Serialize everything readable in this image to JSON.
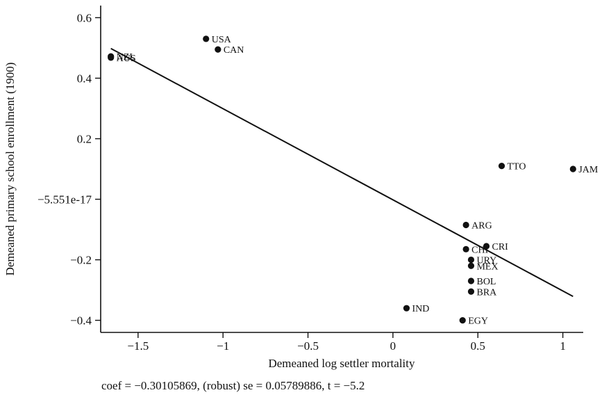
{
  "chart_data": {
    "type": "scatter",
    "title": "",
    "xlabel": "Demeaned log settler mortality",
    "ylabel": "Demeaned primary school enrollment (1900)",
    "xlim": [
      -1.72,
      1.12
    ],
    "ylim": [
      -0.44,
      0.64
    ],
    "x_ticks": [
      {
        "value": -1.5,
        "label": "−1.5"
      },
      {
        "value": -1,
        "label": "−1"
      },
      {
        "value": -0.5,
        "label": "−0.5"
      },
      {
        "value": 0,
        "label": "0"
      },
      {
        "value": 0.5,
        "label": "0.5"
      },
      {
        "value": 1,
        "label": "1"
      }
    ],
    "y_ticks": [
      {
        "value": 0.6,
        "label": "0.6"
      },
      {
        "value": 0.4,
        "label": "0.4"
      },
      {
        "value": 0.2,
        "label": "0.2"
      },
      {
        "value": 0,
        "label": "−5.551e-17"
      },
      {
        "value": -0.2,
        "label": "−0.2"
      },
      {
        "value": -0.4,
        "label": "−0.4"
      }
    ],
    "points": [
      {
        "label": "USA",
        "x": -1.1,
        "y": 0.53
      },
      {
        "label": "CAN",
        "x": -1.03,
        "y": 0.495
      },
      {
        "label": "NZL",
        "x": -1.66,
        "y": 0.472
      },
      {
        "label": "AUS",
        "x": -1.66,
        "y": 0.468
      },
      {
        "label": "TTO",
        "x": 0.64,
        "y": 0.11
      },
      {
        "label": "JAM",
        "x": 1.06,
        "y": 0.1
      },
      {
        "label": "ARG",
        "x": 0.43,
        "y": -0.085
      },
      {
        "label": "CRI",
        "x": 0.55,
        "y": -0.155
      },
      {
        "label": "CHI",
        "x": 0.43,
        "y": -0.165
      },
      {
        "label": "URY",
        "x": 0.46,
        "y": -0.2
      },
      {
        "label": "MEX",
        "x": 0.46,
        "y": -0.22
      },
      {
        "label": "BOL",
        "x": 0.46,
        "y": -0.27
      },
      {
        "label": "BRA",
        "x": 0.46,
        "y": -0.305
      },
      {
        "label": "IND",
        "x": 0.08,
        "y": -0.36
      },
      {
        "label": "EGY",
        "x": 0.41,
        "y": -0.4
      }
    ],
    "fit_line": {
      "x": [
        -1.66,
        1.06
      ],
      "y": [
        0.498,
        -0.321
      ]
    },
    "footnote": "coef = −0.30105869, (robust) se = 0.05789886, t = −5.2"
  }
}
